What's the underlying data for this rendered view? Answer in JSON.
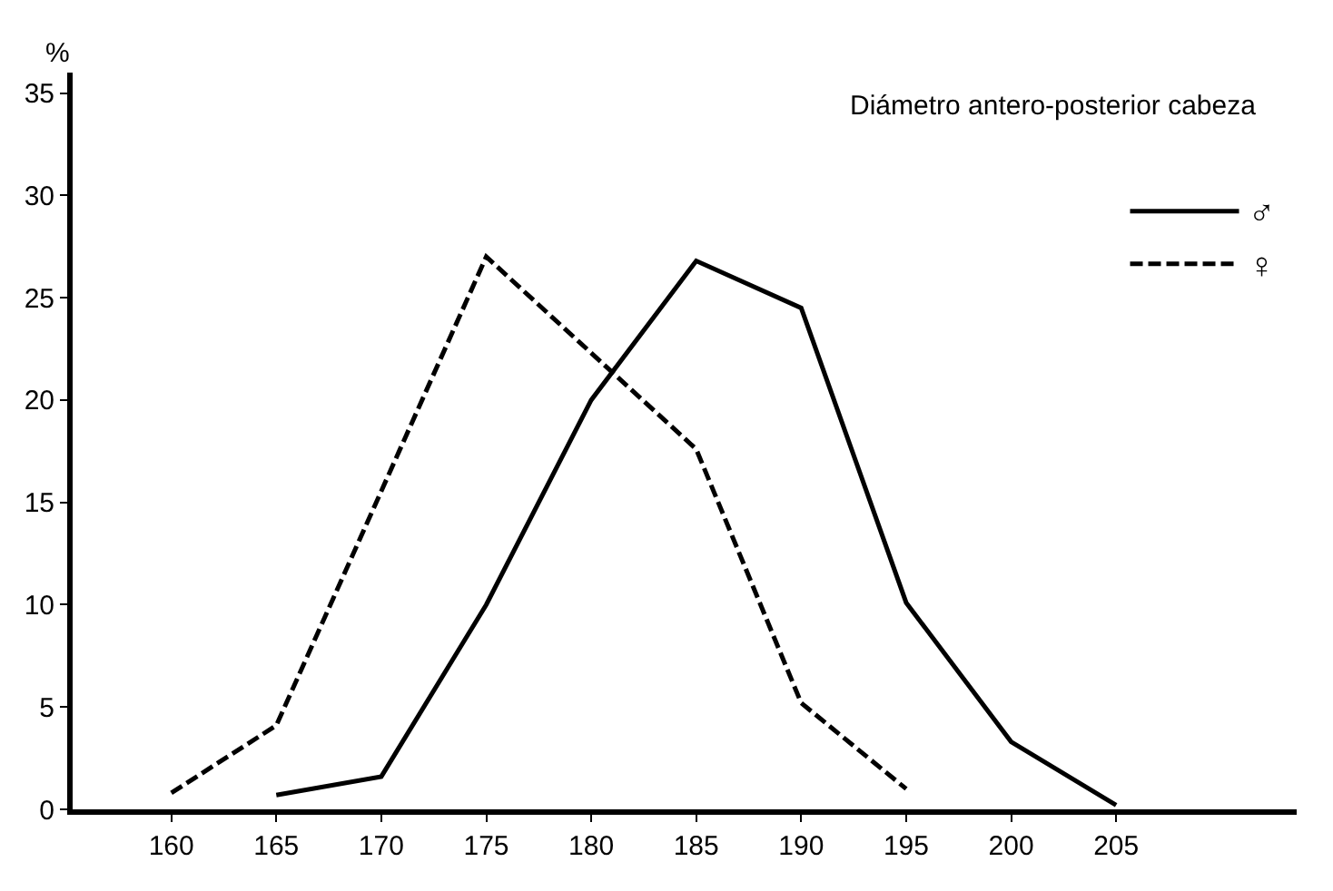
{
  "chart_data": {
    "type": "line",
    "title": "Diámetro antero-posterior cabeza",
    "ylabel": "%",
    "series": [
      {
        "name": "♂",
        "color": "#000000",
        "line_style": "solid",
        "x": [
          165,
          170,
          175,
          180,
          185,
          190,
          195,
          200,
          205
        ],
        "values": [
          0.7,
          1.6,
          10,
          20,
          26.8,
          24.5,
          10.1,
          3.3,
          0.2
        ]
      },
      {
        "name": "♀",
        "color": "#000000",
        "line_style": "dashed",
        "x": [
          160,
          165,
          175,
          185,
          190,
          195
        ],
        "values": [
          0.8,
          4.1,
          27,
          17.6,
          5.2,
          1
        ]
      }
    ],
    "xlim": [
      155.3,
      213.6
    ],
    "xticks": [
      160,
      165,
      170,
      175,
      180,
      185,
      190,
      195,
      200,
      205
    ],
    "ylim": [
      0,
      36
    ],
    "yticks": [
      0,
      5,
      10,
      15,
      20,
      25,
      30,
      35
    ],
    "legend": "top right",
    "marker": "none"
  }
}
